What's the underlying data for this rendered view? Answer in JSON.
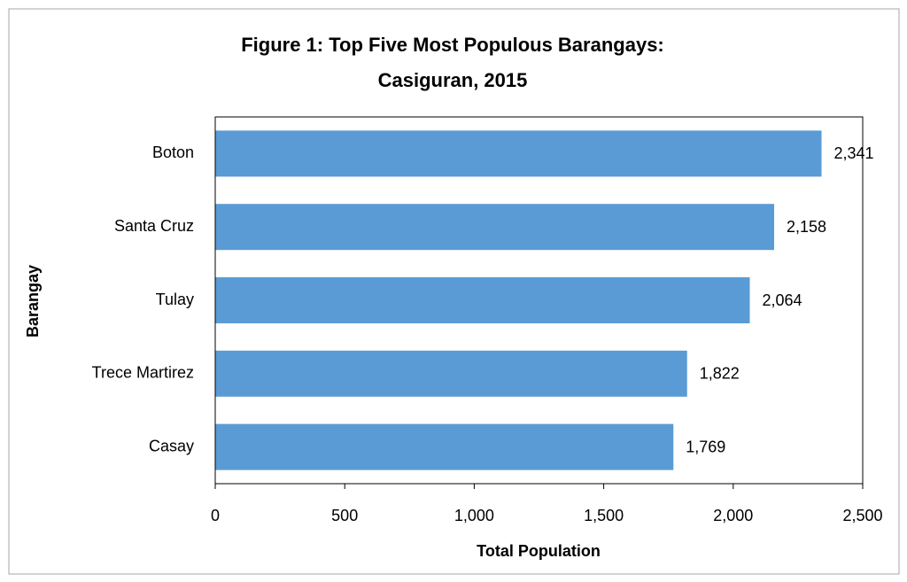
{
  "chart_data": {
    "type": "bar",
    "orientation": "horizontal",
    "title": [
      "Figure 1: Top Five Most Populous Barangays:",
      "Casiguran, 2015"
    ],
    "xlabel": "Total Population",
    "ylabel": "Barangay",
    "categories": [
      "Boton",
      "Santa Cruz",
      "Tulay",
      "Trece Martirez",
      "Casay"
    ],
    "values": [
      2341,
      2158,
      2064,
      1822,
      1769
    ],
    "value_labels": [
      "2,341",
      "2,158",
      "2,064",
      "1,822",
      "1,769"
    ],
    "color": "#5b9bd5",
    "xlim": [
      0,
      2500
    ],
    "xticks": [
      0,
      500,
      {
        "value": 1000,
        "label": "1,000"
      },
      {
        "value": 1500,
        "label": "1,500"
      },
      {
        "value": 2000,
        "label": "2,000"
      },
      {
        "value": 2500,
        "label": "2,500"
      }
    ],
    "grid": false
  }
}
